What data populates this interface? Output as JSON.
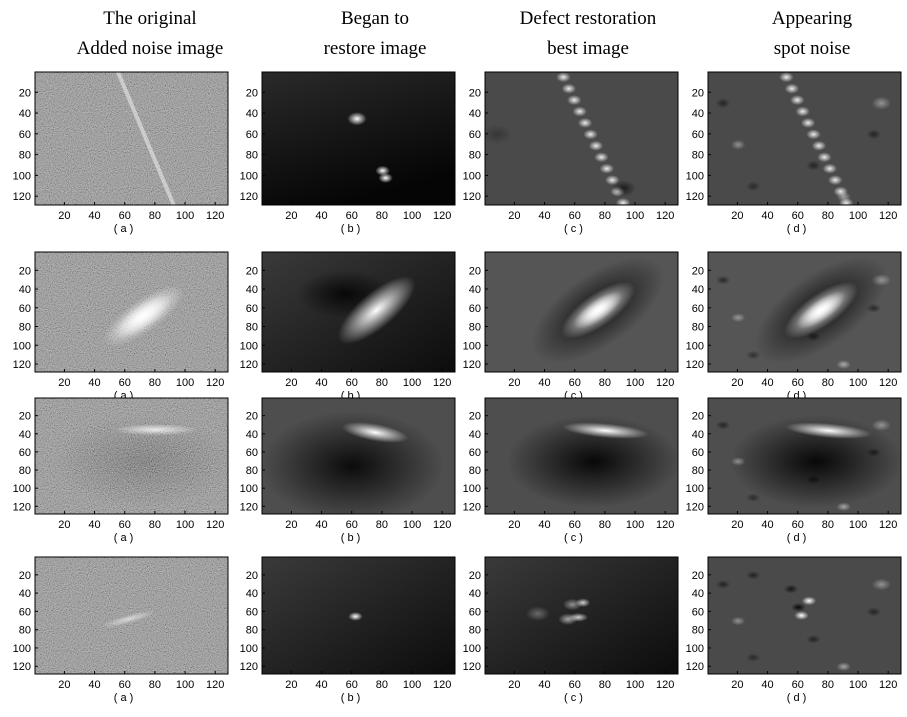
{
  "headers": [
    [
      "The original",
      "Added noise image"
    ],
    [
      "Began to",
      "restore image"
    ],
    [
      "Defect restoration",
      "best image"
    ],
    [
      "Appearing",
      "spot noise"
    ]
  ],
  "axes": {
    "xticks": [
      20,
      40,
      60,
      80,
      100,
      120
    ],
    "yticks": [
      20,
      40,
      60,
      80,
      100,
      120
    ]
  },
  "rows": [
    [
      "( a )",
      "( b )",
      "( c )",
      "( d )"
    ],
    [
      "( a )",
      "( b )",
      "( c )",
      "( d )"
    ],
    [
      "( a )",
      "( b )",
      "( c )",
      "( d )"
    ],
    [
      "( a )",
      "( b )",
      "( c )",
      "( d )"
    ]
  ]
}
